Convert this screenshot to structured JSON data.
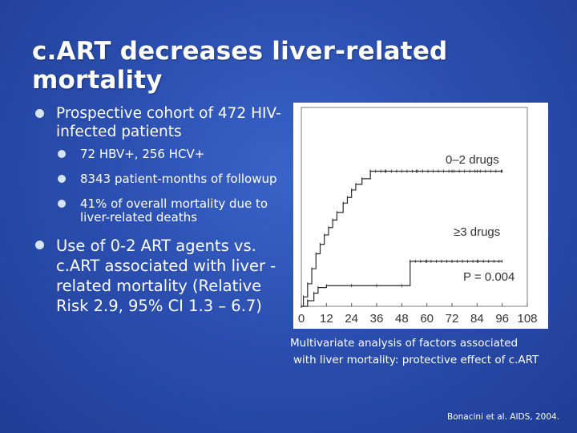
{
  "slide": {
    "title": "c.ART decreases liver-related mortality",
    "bullets": [
      {
        "text": "Prospective cohort of 472 HIV-infected patients"
      },
      {
        "text": "72 HBV+, 256 HCV+"
      },
      {
        "text": "8343 patient-months of followup"
      },
      {
        "text": " 41% of overall mortality due to liver-related deaths"
      },
      {
        "text": "Use of 0-2 ART agents vs. c.ART associated with liver -related mortality (Relative Risk 2.9, 95% CI 1.3 – 6.7)"
      }
    ],
    "caption_line1": "Multivariate analysis of factors associated",
    "caption_line2": "with liver mortality: protective effect of c.ART",
    "citation": "Bonacini et al. AIDS, 2004."
  },
  "chart_data": {
    "type": "line",
    "title": "",
    "xlabel": "",
    "ylabel": "",
    "x_ticks": [
      "0",
      "12",
      "24",
      "36",
      "48",
      "60",
      "72",
      "84",
      "96",
      "108"
    ],
    "xlim": [
      0,
      108
    ],
    "ylim": [
      0,
      1
    ],
    "grid": false,
    "series": [
      {
        "name": "0–2 drugs",
        "x": [
          0,
          1,
          3,
          5,
          7,
          9,
          11,
          13,
          15,
          17,
          20,
          22,
          24,
          26,
          29,
          33,
          40,
          55,
          72,
          84,
          96
        ],
        "y": [
          0,
          0.05,
          0.12,
          0.2,
          0.28,
          0.33,
          0.38,
          0.42,
          0.46,
          0.5,
          0.55,
          0.58,
          0.62,
          0.65,
          0.68,
          0.72,
          0.72,
          0.72,
          0.72,
          0.72,
          0.72
        ]
      },
      {
        "name": "≥3 drugs",
        "x": [
          0,
          3,
          6,
          8,
          12,
          24,
          36,
          48,
          52,
          60,
          72,
          84,
          96
        ],
        "y": [
          0,
          0.03,
          0.07,
          0.1,
          0.11,
          0.11,
          0.11,
          0.11,
          0.24,
          0.24,
          0.24,
          0.24,
          0.24
        ]
      }
    ],
    "annotations": [
      "0–2 drugs",
      "≥3 drugs",
      "P = 0.004"
    ]
  }
}
